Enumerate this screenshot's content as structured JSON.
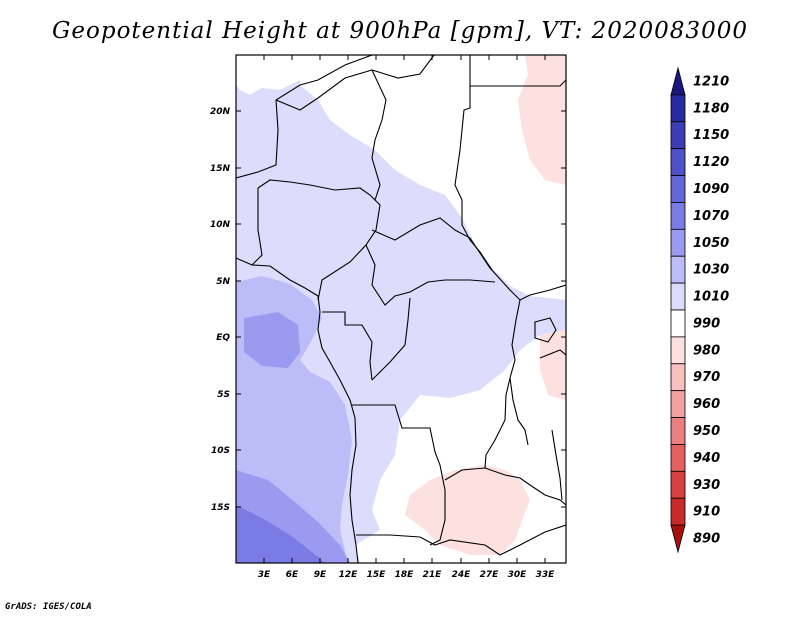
{
  "title": "Geopotential Height at 900hPa [gpm], VT: 2020083000",
  "credit": "GrADS: IGES/COLA",
  "map": {
    "lat_ticks": [
      "20N",
      "15N",
      "10N",
      "5N",
      "EQ",
      "5S",
      "10S",
      "15S"
    ],
    "lon_ticks": [
      "3E",
      "6E",
      "9E",
      "12E",
      "15E",
      "18E",
      "21E",
      "24E",
      "27E",
      "30E",
      "33E"
    ]
  },
  "colorbar": {
    "levels": [
      "1210",
      "1180",
      "1150",
      "1120",
      "1090",
      "1070",
      "1050",
      "1030",
      "1010",
      "990",
      "980",
      "970",
      "960",
      "950",
      "940",
      "930",
      "910",
      "890"
    ],
    "colors": [
      "#1a1880",
      "#2a2aa0",
      "#3c3cb6",
      "#5050c8",
      "#6565d8",
      "#7b7be6",
      "#9a9af0",
      "#bcbcf8",
      "#dcdcfc",
      "#ffffff",
      "#fde0e0",
      "#f8c0c0",
      "#f3a0a0",
      "#ec8080",
      "#e56060",
      "#db4040",
      "#c82a2a",
      "#a81010"
    ],
    "field_colors": {
      "h1010_1030": "#dcdcfc",
      "h1030_1050": "#bcbcf8",
      "h1050_1070": "#9a9af0",
      "h1070_1090": "#7b7be6",
      "h990_1010": "#ffffff",
      "h980_990": "#fde0e0"
    }
  }
}
